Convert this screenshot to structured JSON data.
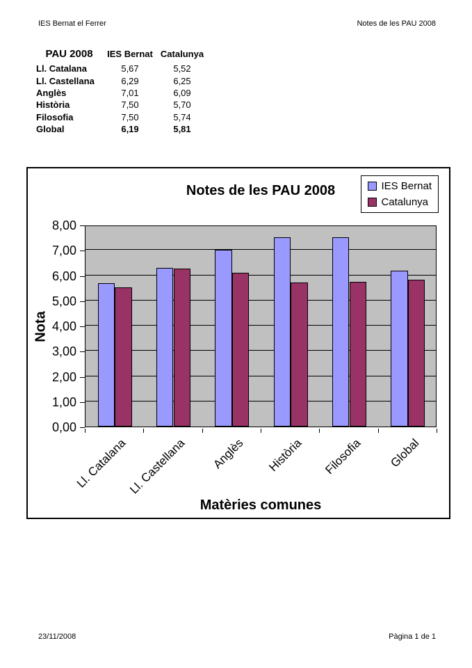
{
  "page": {
    "header_left": "IES Bernat el Ferrer",
    "header_right": "Notes de les PAU 2008",
    "footer_left": "23/11/2008",
    "footer_right": "Pàgina 1 de 1"
  },
  "table": {
    "col_headers": [
      "PAU 2008",
      "IES Bernat",
      "Catalunya"
    ],
    "rows": [
      {
        "label": "Ll. Catalana",
        "ies_bernat": "5,67",
        "catalunya": "5,52"
      },
      {
        "label": "Ll. Castellana",
        "ies_bernat": "6,29",
        "catalunya": "6,25"
      },
      {
        "label": "Anglès",
        "ies_bernat": "7,01",
        "catalunya": "6,09"
      },
      {
        "label": "Història",
        "ies_bernat": "7,50",
        "catalunya": "5,70"
      },
      {
        "label": "Filosofia",
        "ies_bernat": "7,50",
        "catalunya": "5,74"
      },
      {
        "label": "Global",
        "ies_bernat": "6,19",
        "catalunya": "5,81"
      }
    ]
  },
  "chart_data": {
    "type": "bar",
    "title": "Notes de les PAU 2008",
    "categories": [
      "Ll. Catalana",
      "Ll. Castellana",
      "Anglès",
      "Història",
      "Filosofia",
      "Global"
    ],
    "series": [
      {
        "name": "IES Bernat",
        "color": "#9999FF",
        "values": [
          5.67,
          6.29,
          7.01,
          7.5,
          7.5,
          6.19
        ]
      },
      {
        "name": "Catalunya",
        "color": "#993366",
        "values": [
          5.52,
          6.25,
          6.09,
          5.7,
          5.74,
          5.81
        ]
      }
    ],
    "xlabel": "Matèries comunes",
    "ylabel": "Nota",
    "ylim": [
      0,
      8
    ],
    "ytick_step": 1,
    "ytick_labels": [
      "0,00",
      "1,00",
      "2,00",
      "3,00",
      "4,00",
      "5,00",
      "6,00",
      "7,00",
      "8,00"
    ],
    "grid": true,
    "legend_position": "top-right",
    "plot_bg": "#C0C0C0"
  }
}
